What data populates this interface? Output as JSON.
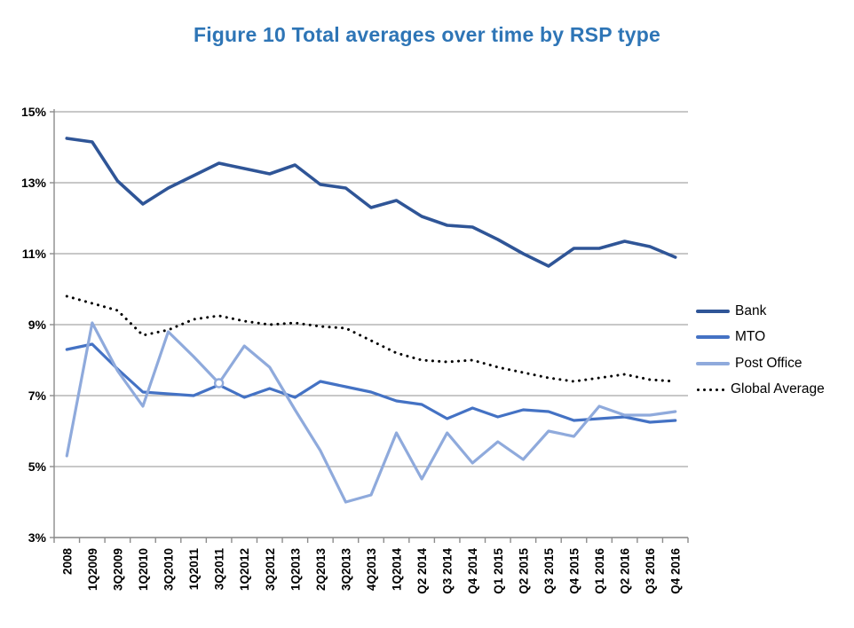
{
  "chart_data": {
    "type": "line",
    "title": "Figure 10 Total averages over time by RSP type",
    "categories": [
      "2008",
      "1Q2009",
      "3Q2009",
      "1Q2010",
      "3Q2010",
      "1Q2011",
      "3Q2011",
      "1Q2012",
      "3Q2012",
      "1Q2013",
      "2Q2013",
      "3Q2013",
      "4Q2013",
      "1Q2014",
      "Q2 2014",
      "Q3 2014",
      "Q4 2014",
      "Q1 2015",
      "Q2 2015",
      "Q3 2015",
      "Q4 2015",
      "Q1 2016",
      "Q2 2016",
      "Q3 2016",
      "Q4 2016"
    ],
    "series": [
      {
        "name": "Bank",
        "color": "#2F5597",
        "style": "solid",
        "stroke_width": 3.6,
        "values": [
          14.25,
          14.15,
          13.05,
          12.4,
          12.85,
          13.2,
          13.55,
          13.4,
          13.25,
          13.5,
          12.95,
          12.85,
          12.3,
          12.5,
          12.05,
          11.8,
          11.75,
          11.4,
          11.0,
          10.65,
          11.15,
          11.15,
          11.35,
          11.2,
          10.9
        ]
      },
      {
        "name": "MTO",
        "color": "#4472C4",
        "style": "solid",
        "stroke_width": 3.2,
        "values": [
          8.3,
          8.45,
          7.75,
          7.1,
          7.05,
          7.0,
          7.3,
          6.95,
          7.2,
          6.95,
          7.4,
          7.25,
          7.1,
          6.85,
          6.75,
          6.35,
          6.65,
          6.4,
          6.6,
          6.55,
          6.3,
          6.35,
          6.4,
          6.25,
          6.3
        ]
      },
      {
        "name": "Post Office",
        "color": "#8FAADC",
        "style": "solid",
        "stroke_width": 3.2,
        "values": [
          5.3,
          9.05,
          7.7,
          6.7,
          8.8,
          8.1,
          7.35,
          8.4,
          7.8,
          6.6,
          5.45,
          4.0,
          4.2,
          5.95,
          4.65,
          5.95,
          5.1,
          5.7,
          5.2,
          6.0,
          5.85,
          6.7,
          6.45,
          6.45,
          6.55
        ]
      },
      {
        "name": "Global Average",
        "color": "#000000",
        "style": "dotted",
        "stroke_width": 3,
        "values": [
          9.8,
          9.6,
          9.4,
          8.7,
          8.85,
          9.15,
          9.25,
          9.1,
          9.0,
          9.05,
          8.95,
          8.9,
          8.55,
          8.2,
          8.0,
          7.95,
          8.0,
          7.8,
          7.65,
          7.5,
          7.4,
          7.5,
          7.6,
          7.45,
          7.4
        ]
      }
    ],
    "ylim": [
      3,
      15
    ],
    "ytick_step": 2,
    "ytick_labels": [
      "3%",
      "5%",
      "7%",
      "9%",
      "11%",
      "13%",
      "15%"
    ],
    "grid": true,
    "legend_position": "right",
    "point_marker": {
      "series": "Post Office",
      "category": "3Q2011",
      "value": 7.35,
      "shape": "open-circle"
    }
  },
  "colors": {
    "title": "#2E75B6",
    "gridline": "#A6A6A6",
    "axis": "#8C8C8C",
    "tick_text": "#000000"
  }
}
